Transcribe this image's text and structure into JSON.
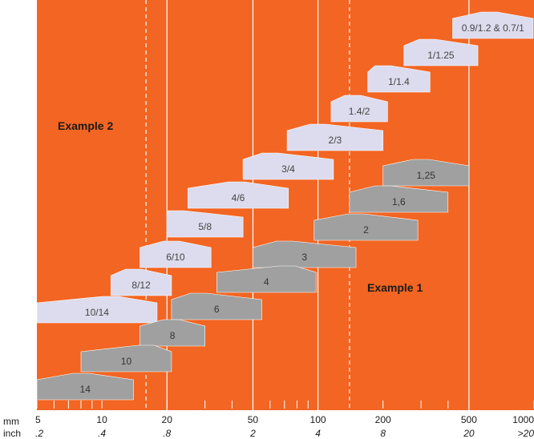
{
  "chart_data": {
    "type": "range",
    "x_scale": "log",
    "xlim": [
      5,
      1000
    ],
    "unit_mm": "mm",
    "unit_inch": "inch",
    "mm_ticks": [
      {
        "v": 5,
        "label": "5"
      },
      {
        "v": 10,
        "label": "10"
      },
      {
        "v": 20,
        "label": "20"
      },
      {
        "v": 50,
        "label": "50"
      },
      {
        "v": 100,
        "label": "100"
      },
      {
        "v": 200,
        "label": "200"
      },
      {
        "v": 500,
        "label": "500"
      },
      {
        "v": 1000,
        "label": "1000"
      }
    ],
    "inch_ticks": [
      {
        "v": 5,
        "label": ".2"
      },
      {
        "v": 10,
        "label": ".4"
      },
      {
        "v": 20,
        "label": ".8"
      },
      {
        "v": 50,
        "label": "2"
      },
      {
        "v": 100,
        "label": "4"
      },
      {
        "v": 200,
        "label": "8"
      },
      {
        "v": 500,
        "label": "20"
      },
      {
        "v": 1000,
        "label": ">20"
      }
    ],
    "minor_ticks": [
      6,
      7,
      8,
      9,
      30,
      40,
      60,
      70,
      80,
      90,
      300,
      400
    ],
    "solid_gridlines": [
      20,
      50,
      100,
      500
    ],
    "dashed_gridlines": [
      16,
      140
    ],
    "annotations": [
      "Example 2",
      "Example 1"
    ],
    "series": [
      {
        "name": "",
        "color": "#dcdcee",
        "text_color": "#444444",
        "ranges": [
          {
            "label": "0.9/1.2 & 0.7/1",
            "min": 420,
            "peak": 620,
            "max": 1000
          },
          {
            "label": "1/1.25",
            "min": 250,
            "peak": 320,
            "max": 550
          },
          {
            "label": "1/1.4",
            "min": 170,
            "peak": 200,
            "max": 330
          },
          {
            "label": "1.4/2",
            "min": 115,
            "peak": 145,
            "max": 210
          },
          {
            "label": "2/3",
            "min": 72,
            "peak": 100,
            "max": 200
          },
          {
            "label": "3/4",
            "min": 45,
            "peak": 60,
            "max": 118
          },
          {
            "label": "4/6",
            "min": 25,
            "peak": 42,
            "max": 73
          },
          {
            "label": "5/8",
            "min": 20,
            "peak": 22,
            "max": 45
          },
          {
            "label": "6/10",
            "min": 15,
            "peak": 21,
            "max": 32
          },
          {
            "label": "8/12",
            "min": 11,
            "peak": 14,
            "max": 21
          },
          {
            "label": "10/14",
            "min": 5,
            "peak": 11,
            "max": 18
          }
        ]
      },
      {
        "name": "",
        "color": "#a0a0a0",
        "text_color": "#333333",
        "ranges": [
          {
            "label": "1,25",
            "min": 200,
            "peak": 300,
            "max": 500
          },
          {
            "label": "1,6",
            "min": 140,
            "peak": 200,
            "max": 400
          },
          {
            "label": "2",
            "min": 96,
            "peak": 150,
            "max": 290
          },
          {
            "label": "3",
            "min": 50,
            "peak": 70,
            "max": 150
          },
          {
            "label": "4",
            "min": 34,
            "peak": 72,
            "max": 98
          },
          {
            "label": "6",
            "min": 21,
            "peak": 28,
            "max": 55
          },
          {
            "label": "8",
            "min": 15,
            "peak": 21,
            "max": 30
          },
          {
            "label": "10",
            "min": 8,
            "peak": 16,
            "max": 21
          },
          {
            "label": "14",
            "min": 5,
            "peak": 8,
            "max": 14
          }
        ]
      }
    ]
  }
}
